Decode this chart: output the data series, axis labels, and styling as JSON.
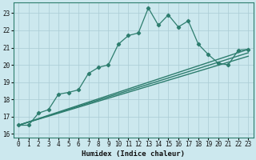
{
  "xlabel": "Humidex (Indice chaleur)",
  "bg_color": "#cce8ee",
  "grid_color": "#aaccd4",
  "line_color": "#2d7d6e",
  "xlim": [
    -0.5,
    23.5
  ],
  "ylim": [
    15.8,
    23.6
  ],
  "yticks": [
    16,
    17,
    18,
    19,
    20,
    21,
    22,
    23
  ],
  "xticks": [
    0,
    1,
    2,
    3,
    4,
    5,
    6,
    7,
    8,
    9,
    10,
    11,
    12,
    13,
    14,
    15,
    16,
    17,
    18,
    19,
    20,
    21,
    22,
    23
  ],
  "series1_x": [
    0,
    1,
    2,
    3,
    4,
    5,
    6,
    7,
    8,
    9,
    10,
    11,
    12,
    13,
    14,
    15,
    16,
    17,
    18,
    19,
    20,
    21,
    22,
    23
  ],
  "series1_y": [
    16.5,
    16.5,
    17.2,
    17.4,
    18.3,
    18.4,
    18.55,
    19.5,
    19.85,
    20.0,
    21.2,
    21.7,
    21.85,
    23.3,
    22.3,
    22.9,
    22.2,
    22.55,
    21.2,
    20.6,
    20.1,
    20.0,
    20.85,
    20.9
  ],
  "series2_x": [
    0,
    23
  ],
  "series2_y": [
    16.5,
    20.9
  ],
  "series3_x": [
    0,
    23
  ],
  "series3_y": [
    16.5,
    20.7
  ],
  "series4_x": [
    0,
    23
  ],
  "series4_y": [
    16.5,
    20.5
  ]
}
